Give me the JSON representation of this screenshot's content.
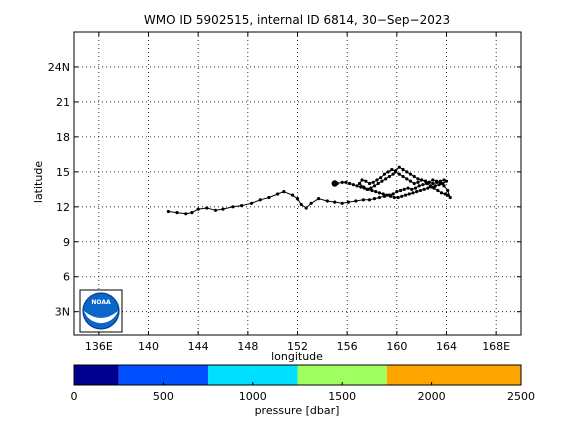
{
  "chart_data": [
    {
      "type": "scatter",
      "title": "WMO ID 5902515, internal ID 6814, 30−Sep−2023",
      "xlabel": "longitude",
      "ylabel": "latitude",
      "xlim": [
        134,
        170
      ],
      "ylim": [
        1,
        27
      ],
      "xticks": [
        136,
        140,
        144,
        148,
        152,
        156,
        160,
        164,
        168
      ],
      "xtick_labels": [
        "136E",
        "140",
        "144",
        "148",
        "152",
        "156",
        "160",
        "164",
        "168E"
      ],
      "yticks": [
        3,
        6,
        9,
        12,
        15,
        18,
        21,
        24
      ],
      "ytick_labels": [
        "3N",
        "6",
        "9",
        "12",
        "15",
        "18",
        "21",
        "24N"
      ],
      "grid": true,
      "series": [
        {
          "x": [
            141.6,
            142.3,
            143.0,
            143.5,
            144.0,
            144.7,
            145.4,
            146.0,
            146.8,
            147.5,
            148.3,
            149.0,
            149.7,
            150.4,
            150.9,
            151.6,
            152.0,
            152.3,
            152.7,
            153.1,
            153.7,
            154.4,
            155.0,
            155.6,
            156.1,
            156.7,
            157.3,
            157.8,
            158.2,
            158.6,
            159.0,
            159.4,
            159.7,
            160.0,
            160.3,
            160.6,
            160.9,
            161.2,
            161.5,
            161.8,
            162.1,
            162.4,
            162.7,
            163.0,
            163.3,
            163.6,
            163.9,
            164.1,
            164.3,
            164.1,
            163.8,
            163.5,
            163.2,
            162.9,
            162.6,
            162.3,
            162.0,
            161.7,
            161.4,
            161.1,
            160.8,
            160.5,
            160.2,
            159.9,
            159.6,
            159.3,
            159.0,
            158.7,
            158.4,
            158.1,
            157.8,
            157.5,
            157.2,
            157.0,
            157.3,
            157.6,
            157.9,
            158.2,
            158.5,
            158.8,
            159.1,
            159.4,
            159.7,
            159.9,
            160.2,
            160.5,
            160.8,
            161.1,
            161.4,
            161.7,
            162.0,
            162.3,
            162.6,
            162.9,
            163.2,
            163.5,
            163.8,
            164.0,
            163.7,
            163.4,
            163.1,
            162.8,
            162.5,
            162.2,
            161.9,
            161.6,
            161.3,
            161.0,
            160.7,
            160.4,
            160.1,
            159.8,
            159.5,
            159.2,
            158.9,
            158.6,
            158.3,
            158.0,
            157.7,
            157.4,
            157.1,
            156.8,
            156.5,
            156.2,
            155.9,
            155.6,
            155.2,
            155.0
          ],
          "y": [
            11.6,
            11.5,
            11.4,
            11.5,
            11.8,
            11.9,
            11.7,
            11.8,
            12.0,
            12.1,
            12.3,
            12.6,
            12.8,
            13.1,
            13.3,
            13.0,
            12.7,
            12.2,
            11.9,
            12.3,
            12.7,
            12.5,
            12.4,
            12.3,
            12.4,
            12.5,
            12.6,
            12.6,
            12.7,
            12.8,
            12.9,
            13.0,
            13.1,
            13.3,
            13.4,
            13.5,
            13.6,
            13.5,
            13.6,
            13.8,
            13.9,
            14.0,
            13.8,
            13.6,
            13.4,
            13.2,
            13.1,
            13.0,
            12.8,
            13.4,
            13.8,
            14.0,
            14.2,
            14.3,
            14.1,
            14.2,
            14.3,
            14.1,
            14.0,
            14.2,
            14.4,
            14.6,
            14.8,
            15.0,
            15.2,
            15.0,
            14.8,
            14.5,
            14.3,
            14.1,
            14.0,
            14.2,
            14.3,
            14.0,
            13.7,
            13.5,
            13.6,
            13.8,
            14.0,
            14.2,
            14.4,
            14.6,
            14.8,
            15.1,
            15.4,
            15.2,
            15.0,
            14.8,
            14.6,
            14.4,
            14.3,
            14.2,
            14.1,
            14.0,
            14.1,
            14.2,
            14.3,
            14.2,
            14.0,
            13.9,
            13.8,
            13.7,
            13.6,
            13.5,
            13.4,
            13.3,
            13.2,
            13.1,
            13.0,
            12.9,
            12.8,
            12.8,
            12.9,
            13.0,
            13.1,
            13.2,
            13.3,
            13.4,
            13.5,
            13.6,
            13.7,
            13.8,
            13.9,
            14.0,
            14.1,
            14.1,
            14.0,
            14.0
          ],
          "marker_start": [
            155.0,
            14.0
          ]
        }
      ]
    },
    {
      "type": "colorbar",
      "xlabel": "pressure [dbar]",
      "xlim": [
        0,
        2500
      ],
      "xticks": [
        0,
        500,
        1000,
        1500,
        2000,
        2500
      ],
      "xtick_labels": [
        "0",
        "500",
        "1000",
        "1500",
        "2000",
        "2500"
      ],
      "bands": [
        {
          "from": 0,
          "to": 250,
          "color": "#00008f"
        },
        {
          "from": 250,
          "to": 750,
          "color": "#0050ff"
        },
        {
          "from": 750,
          "to": 1250,
          "color": "#00dfff"
        },
        {
          "from": 1250,
          "to": 1750,
          "color": "#9fff60"
        },
        {
          "from": 1750,
          "to": 2500,
          "color": "#ffa500"
        }
      ]
    }
  ],
  "logo": {
    "text": "NOAA"
  }
}
